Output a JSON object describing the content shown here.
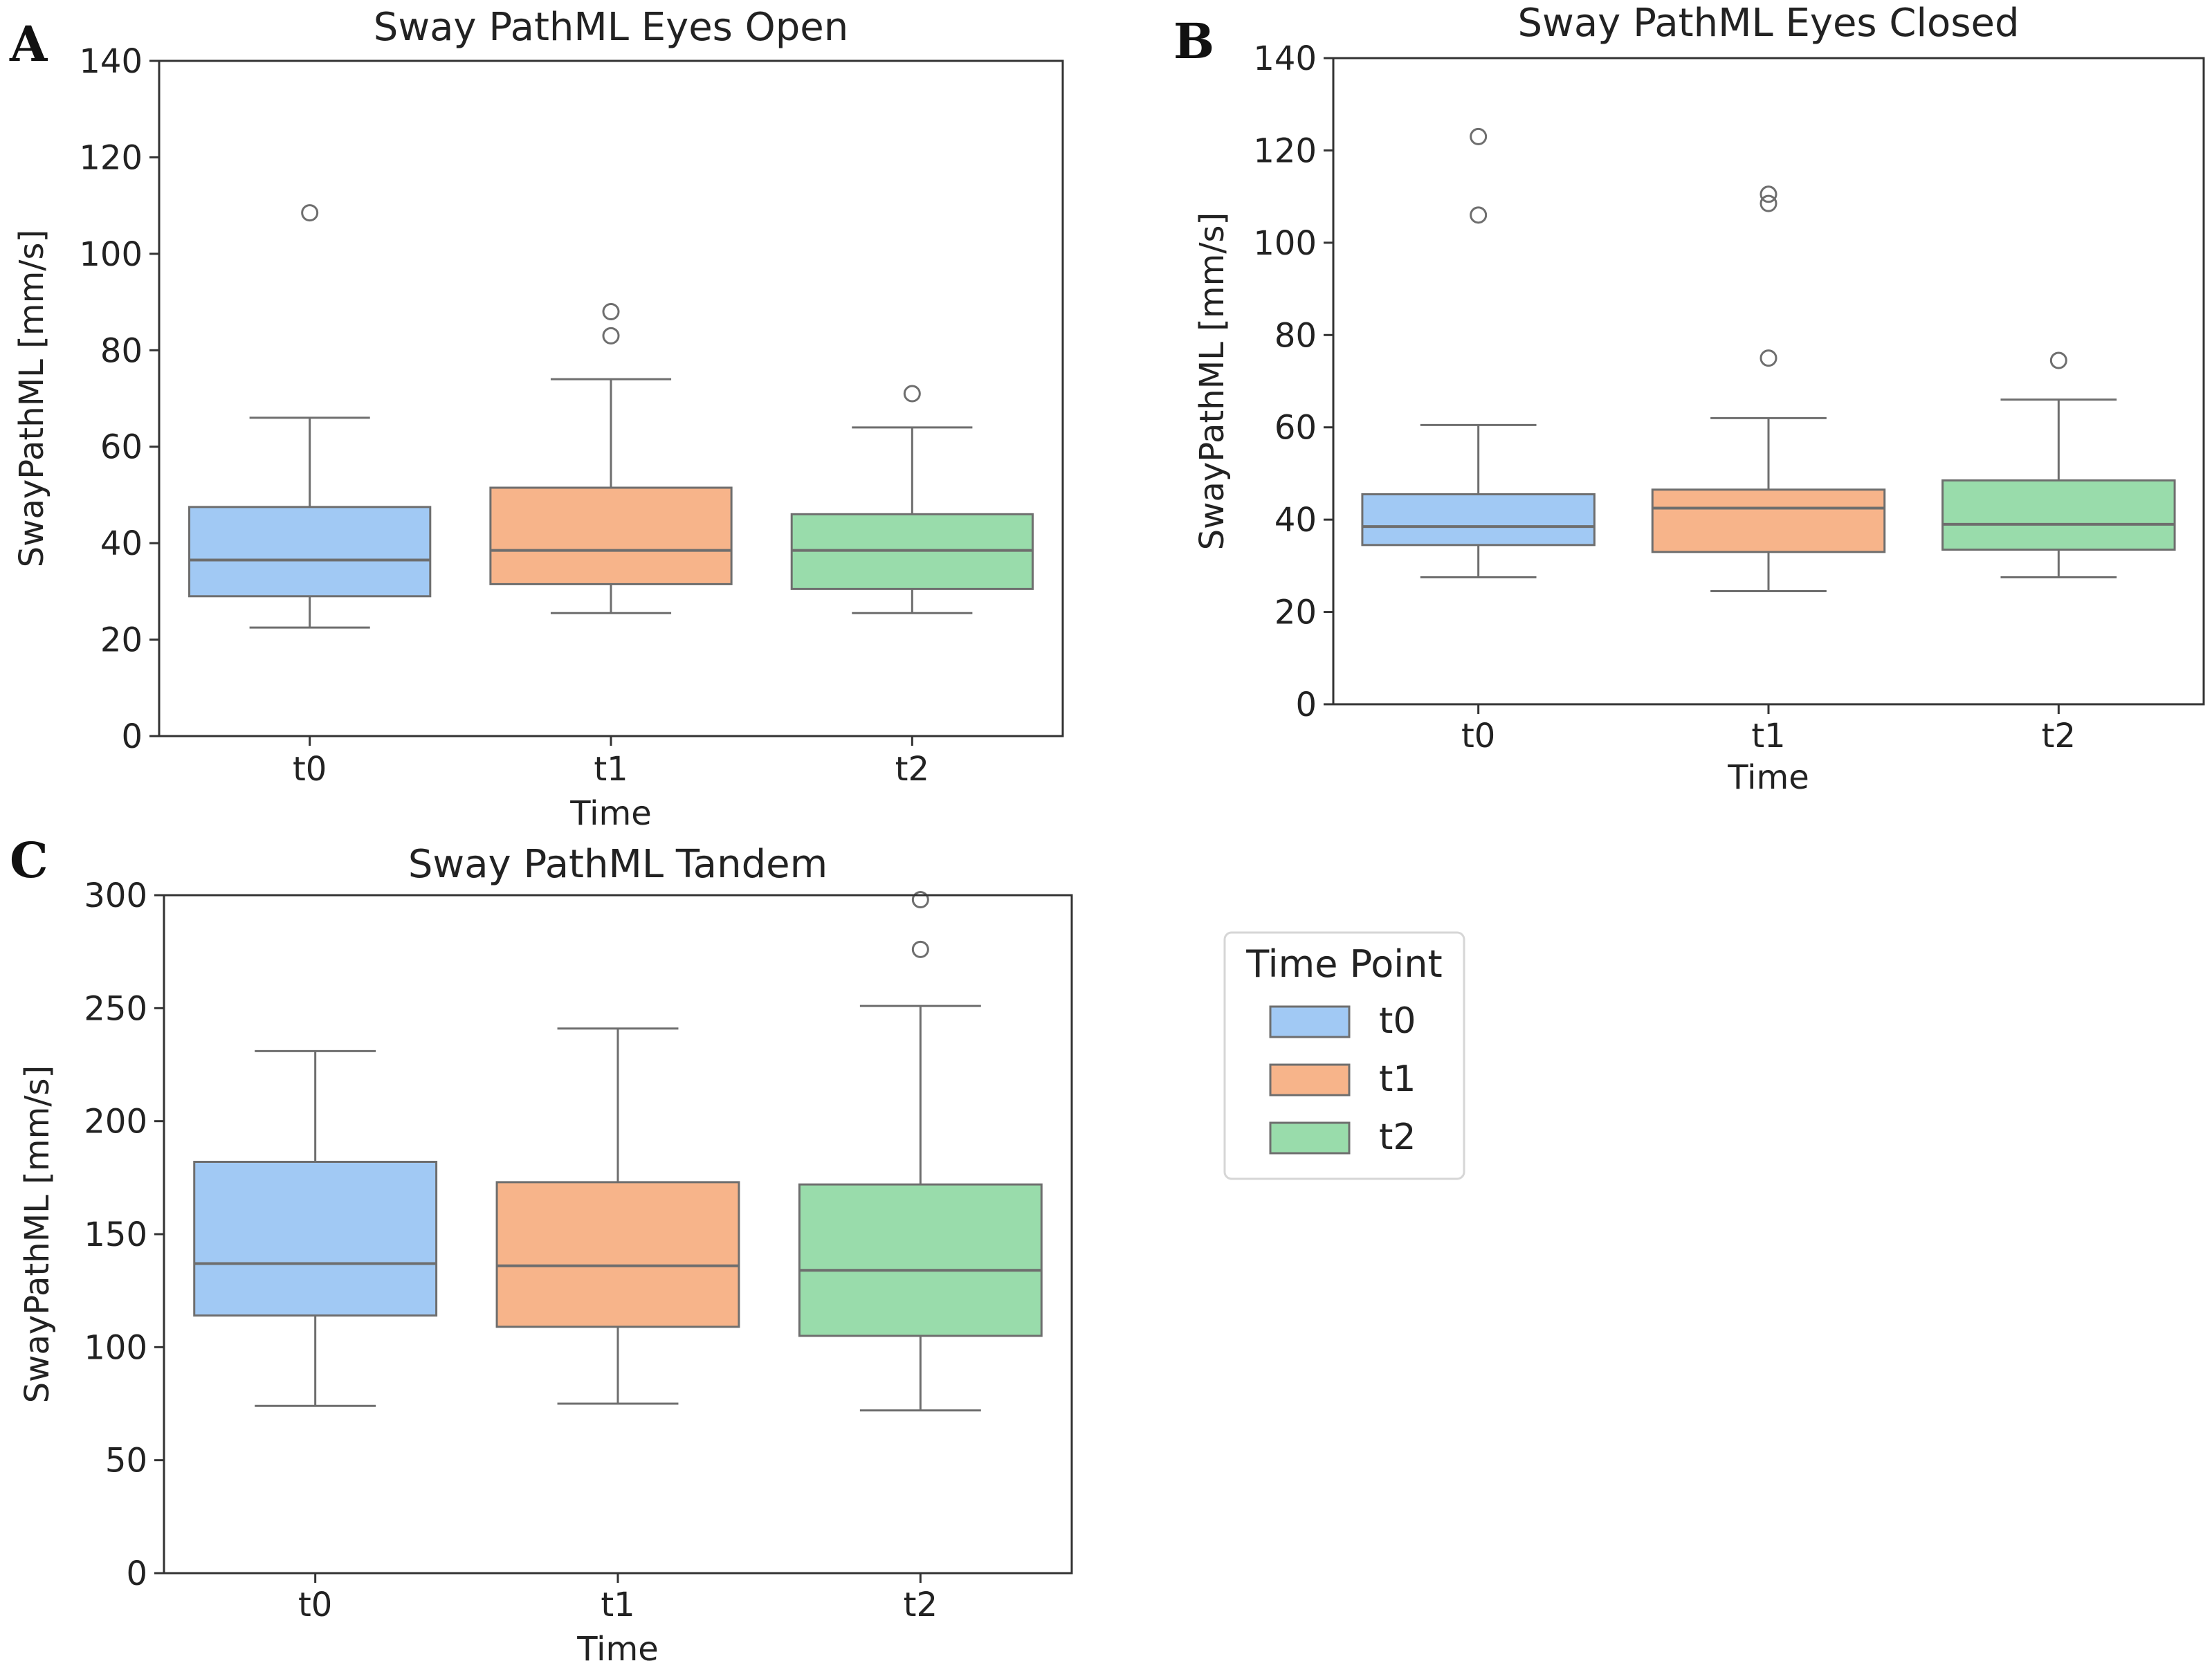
{
  "colors": {
    "t0": "#a1c9f4",
    "t1": "#f7b48a",
    "t2": "#99dcab",
    "box_edge": "#6e6e6e",
    "axis": "#333333",
    "text": "#222222"
  },
  "legend": {
    "title": "Time Point",
    "items": [
      {
        "label": "t0",
        "color": "#a1c9f4"
      },
      {
        "label": "t1",
        "color": "#f7b48a"
      },
      {
        "label": "t2",
        "color": "#99dcab"
      }
    ]
  },
  "chart_data": [
    {
      "panel": "A",
      "type": "box",
      "title": "Sway PathML Eyes Open",
      "xlabel": "Time",
      "ylabel": "SwayPathML [mm/s]",
      "ylim": [
        0,
        140
      ],
      "yticks": [
        0,
        20,
        40,
        60,
        80,
        100,
        120,
        140
      ],
      "categories": [
        "t0",
        "t1",
        "t2"
      ],
      "boxes": [
        {
          "q1": 29,
          "median": 36.5,
          "q3": 47.5,
          "whisker_low": 22.5,
          "whisker_high": 66,
          "outliers": [
            108.5
          ]
        },
        {
          "q1": 31.5,
          "median": 38.5,
          "q3": 51.5,
          "whisker_low": 25.5,
          "whisker_high": 74,
          "outliers": [
            88,
            83
          ]
        },
        {
          "q1": 30.5,
          "median": 38.5,
          "q3": 46,
          "whisker_low": 25.5,
          "whisker_high": 64,
          "outliers": [
            71
          ]
        }
      ]
    },
    {
      "panel": "B",
      "type": "box",
      "title": "Sway PathML Eyes Closed",
      "xlabel": "Time",
      "ylabel": "SwayPathML [mm/s]",
      "ylim": [
        0,
        140
      ],
      "yticks": [
        0,
        20,
        40,
        60,
        80,
        100,
        120,
        140
      ],
      "categories": [
        "t0",
        "t1",
        "t2"
      ],
      "boxes": [
        {
          "q1": 34.5,
          "median": 38.5,
          "q3": 45.5,
          "whisker_low": 27.5,
          "whisker_high": 60.5,
          "outliers": [
            123,
            106
          ]
        },
        {
          "q1": 33,
          "median": 42.5,
          "q3": 46.5,
          "whisker_low": 24.5,
          "whisker_high": 62,
          "outliers": [
            110.5,
            108.5,
            75
          ]
        },
        {
          "q1": 33.5,
          "median": 39,
          "q3": 48.5,
          "whisker_low": 27.5,
          "whisker_high": 66,
          "outliers": [
            74.5
          ]
        }
      ]
    },
    {
      "panel": "C",
      "type": "box",
      "title": "Sway PathML Tandem",
      "xlabel": "Time",
      "ylabel": "SwayPathML [mm/s]",
      "ylim": [
        0,
        300
      ],
      "yticks": [
        0,
        50,
        100,
        150,
        200,
        250,
        300
      ],
      "categories": [
        "t0",
        "t1",
        "t2"
      ],
      "boxes": [
        {
          "q1": 114,
          "median": 137,
          "q3": 182,
          "whisker_low": 74,
          "whisker_high": 231,
          "outliers": []
        },
        {
          "q1": 109,
          "median": 136,
          "q3": 173,
          "whisker_low": 75,
          "whisker_high": 241,
          "outliers": []
        },
        {
          "q1": 105,
          "median": 134,
          "q3": 172,
          "whisker_low": 72,
          "whisker_high": 251,
          "outliers": [
            298,
            276
          ]
        }
      ]
    }
  ]
}
